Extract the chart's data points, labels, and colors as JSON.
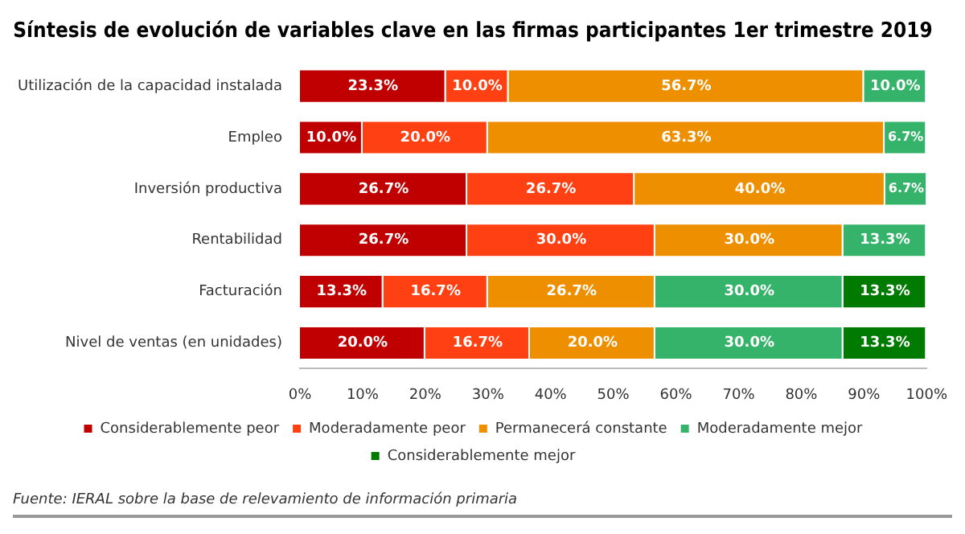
{
  "chart_data": {
    "type": "bar",
    "orientation": "horizontal",
    "stacked": true,
    "title": "Síntesis de evolución de variables clave en las firmas participantes 1er trimestre 2019",
    "categories": [
      "Utilización de la capacidad instalada",
      "Empleo",
      "Inversión productiva",
      "Rentabilidad",
      "Facturación",
      "Nivel de ventas (en unidades)"
    ],
    "series": [
      {
        "name": "Considerablemente peor",
        "color": "#c00000",
        "values": [
          23.3,
          10.0,
          26.7,
          26.7,
          13.3,
          20.0
        ],
        "value_labels": [
          "23.3%",
          "10.0%",
          "26.7%",
          "26.7%",
          "13.3%",
          "20.0%"
        ]
      },
      {
        "name": "Moderadamente peor",
        "color": "#ff4013",
        "values": [
          10.0,
          20.0,
          26.7,
          30.0,
          16.7,
          16.7
        ],
        "value_labels": [
          "10.0%",
          "20.0%",
          "26.7%",
          "30.0%",
          "16.7%",
          "16.7%"
        ]
      },
      {
        "name": "Permanecerá constante",
        "color": "#ee8f00",
        "values": [
          56.7,
          63.3,
          40.0,
          30.0,
          26.7,
          20.0
        ],
        "value_labels": [
          "56.7%",
          "63.3%",
          "40.0%",
          "30.0%",
          "26.7%",
          "20.0%"
        ]
      },
      {
        "name": "Moderadamente mejor",
        "color": "#36b36a",
        "values": [
          10.0,
          6.7,
          6.7,
          13.3,
          30.0,
          30.0
        ],
        "value_labels": [
          "10.0%",
          "6.7%",
          "6.7%",
          "13.3%",
          "30.0%",
          "30.0%"
        ]
      },
      {
        "name": "Considerablemente mejor",
        "color": "#007a00",
        "values": [
          null,
          null,
          null,
          null,
          13.3,
          13.3
        ],
        "value_labels": [
          null,
          null,
          null,
          null,
          "13.3%",
          "13.3%"
        ]
      }
    ],
    "xlim": [
      0,
      100
    ],
    "xticks": [
      {
        "value": 0,
        "label": "0%"
      },
      {
        "value": 10,
        "label": "10%"
      },
      {
        "value": 20,
        "label": "20%"
      },
      {
        "value": 30,
        "label": "30%"
      },
      {
        "value": 40,
        "label": "40%"
      },
      {
        "value": 50,
        "label": "50%"
      },
      {
        "value": 60,
        "label": "60%"
      },
      {
        "value": 70,
        "label": "70%"
      },
      {
        "value": 80,
        "label": "80%"
      },
      {
        "value": 90,
        "label": "90%"
      },
      {
        "value": 100,
        "label": "100%"
      }
    ],
    "grid": false,
    "legend": "bottom",
    "annotations": [
      "Fuente: IERAL sobre la base de relevamiento de información primaria"
    ]
  }
}
